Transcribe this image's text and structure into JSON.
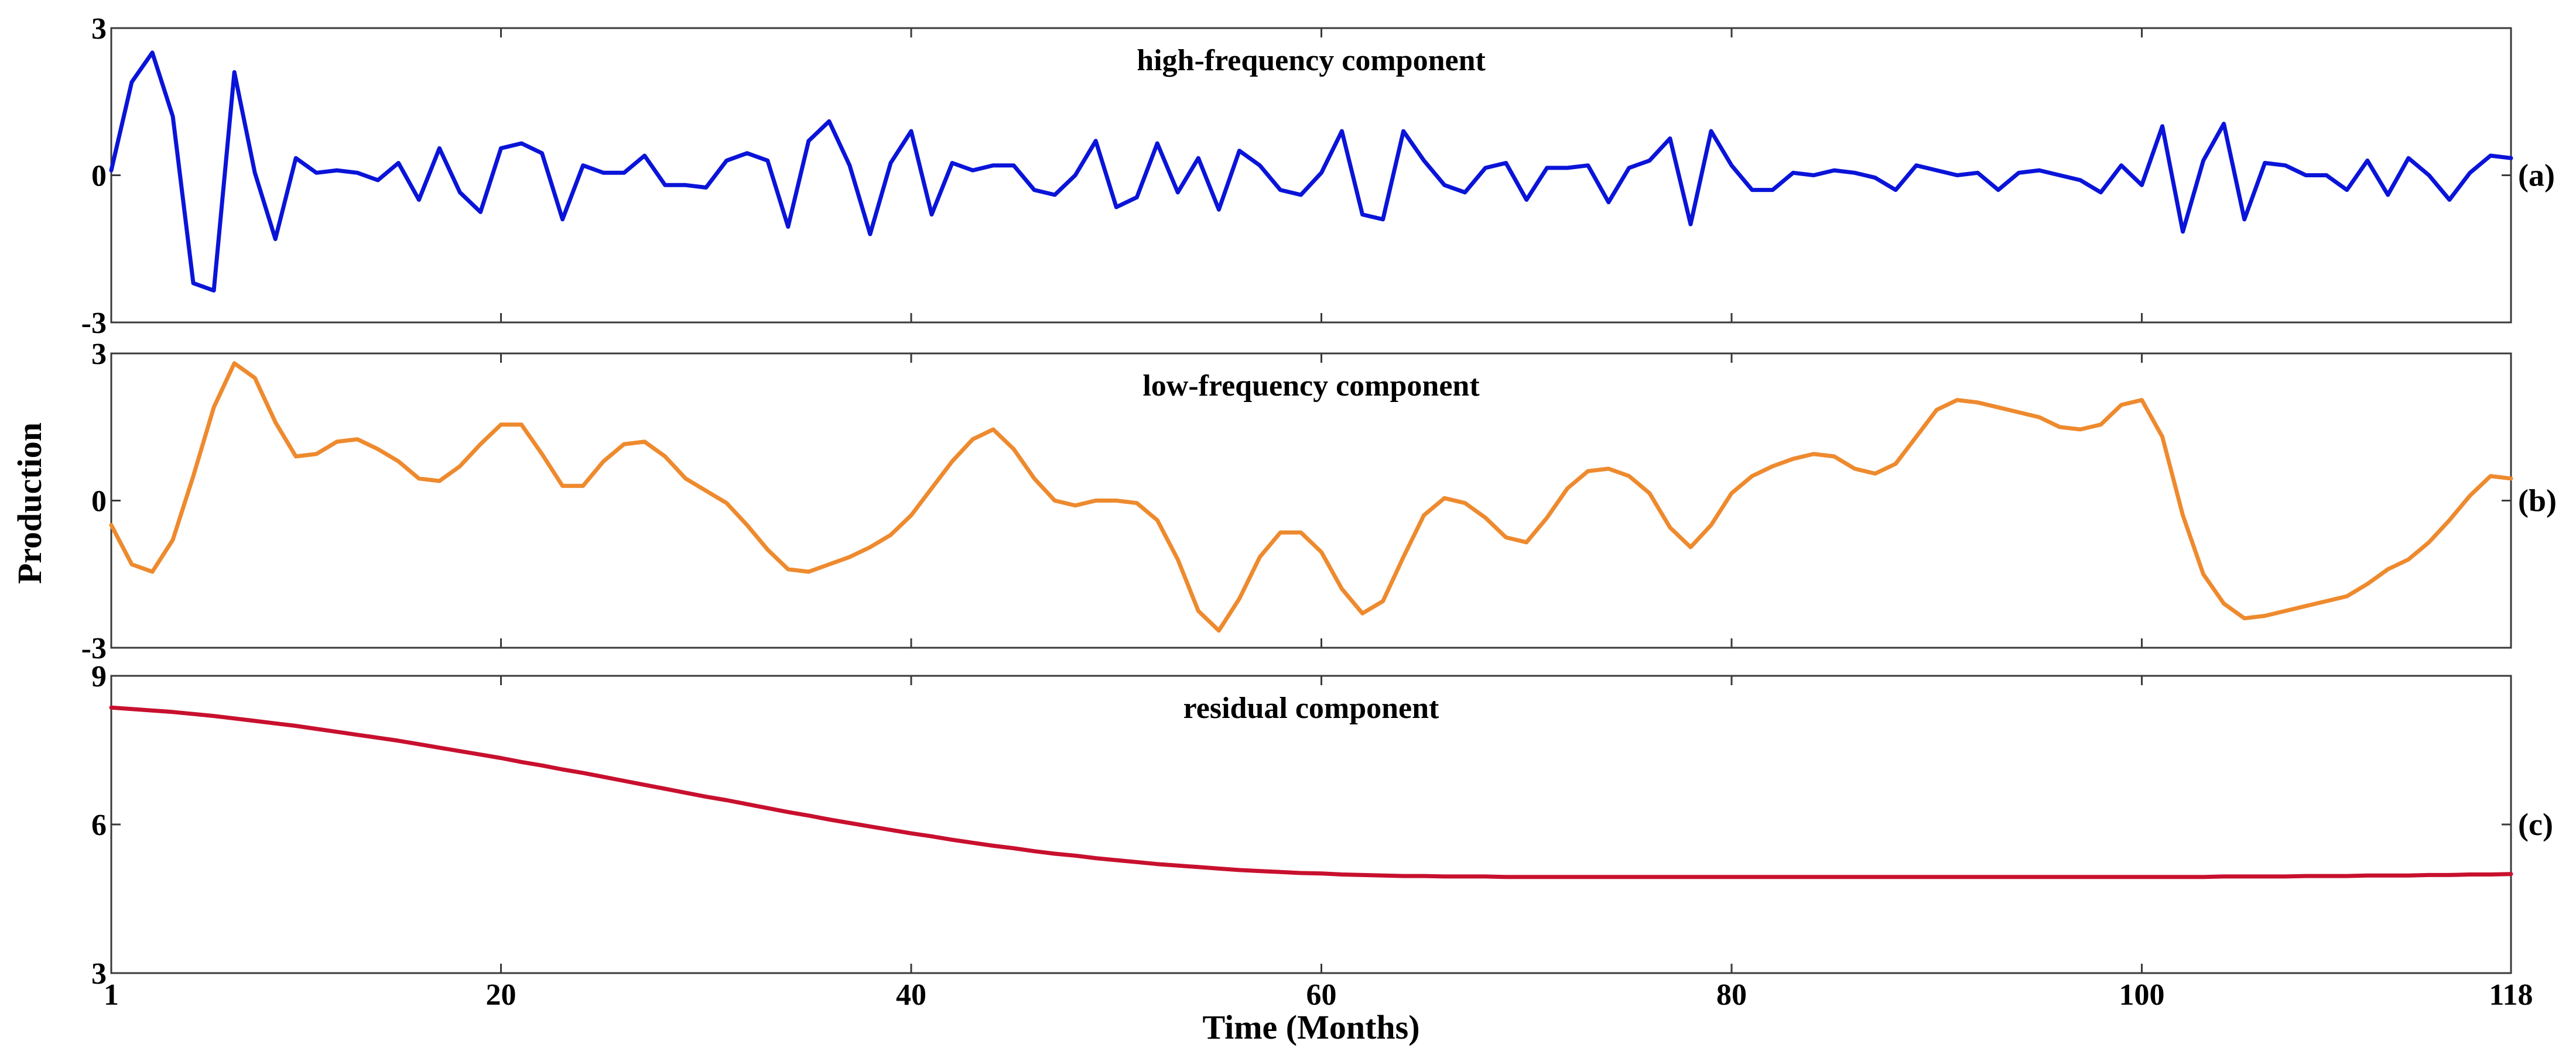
{
  "chart_data": [
    {
      "type": "line",
      "panel_label": "(a)",
      "title": "high-frequency component",
      "color": "#0a14d8",
      "ylim": [
        -3,
        3
      ],
      "yticks": [
        "-3",
        "0",
        "3"
      ],
      "x_start": 1,
      "values": [
        0.1,
        1.9,
        2.5,
        1.2,
        -2.2,
        -2.35,
        2.1,
        0.05,
        -1.3,
        0.35,
        0.05,
        0.1,
        0.05,
        -0.1,
        0.25,
        -0.5,
        0.55,
        -0.35,
        -0.75,
        0.55,
        0.65,
        0.45,
        -0.9,
        0.2,
        0.05,
        0.05,
        0.4,
        -0.2,
        -0.2,
        -0.25,
        0.3,
        0.45,
        0.3,
        -1.05,
        0.7,
        1.1,
        0.2,
        -1.2,
        0.25,
        0.9,
        -0.8,
        0.25,
        0.1,
        0.2,
        0.2,
        -0.3,
        -0.4,
        0.0,
        0.7,
        -0.65,
        -0.45,
        0.65,
        -0.35,
        0.35,
        -0.7,
        0.5,
        0.2,
        -0.3,
        -0.4,
        0.05,
        0.9,
        -0.8,
        -0.9,
        0.9,
        0.3,
        -0.2,
        -0.35,
        0.15,
        0.25,
        -0.5,
        0.15,
        0.15,
        0.2,
        -0.55,
        0.15,
        0.3,
        0.75,
        -1.0,
        0.9,
        0.2,
        -0.3,
        -0.3,
        0.05,
        0.0,
        0.1,
        0.05,
        -0.05,
        -0.3,
        0.2,
        0.1,
        0.0,
        0.05,
        -0.3,
        0.05,
        0.1,
        0.0,
        -0.1,
        -0.35,
        0.2,
        -0.2,
        1.0,
        -1.15,
        0.3,
        1.05,
        -0.9,
        0.25,
        0.2,
        0.0,
        0.0,
        -0.3,
        0.3,
        -0.4,
        0.35,
        0.0,
        -0.5,
        0.05,
        0.4,
        0.35
      ]
    },
    {
      "type": "line",
      "panel_label": "(b)",
      "title": "low-frequency component",
      "color": "#ee8a2e",
      "ylim": [
        -3,
        3
      ],
      "yticks": [
        "-3",
        "0",
        "3"
      ],
      "x_start": 1,
      "values": [
        -0.5,
        -1.3,
        -1.45,
        -0.8,
        0.5,
        1.9,
        2.8,
        2.5,
        1.6,
        0.9,
        0.95,
        1.2,
        1.25,
        1.05,
        0.8,
        0.45,
        0.4,
        0.7,
        1.15,
        1.55,
        1.55,
        0.95,
        0.3,
        0.3,
        0.8,
        1.15,
        1.2,
        0.9,
        0.45,
        0.2,
        -0.05,
        -0.5,
        -1.0,
        -1.4,
        -1.45,
        -1.3,
        -1.15,
        -0.95,
        -0.7,
        -0.3,
        0.25,
        0.8,
        1.25,
        1.45,
        1.05,
        0.45,
        0.0,
        -0.1,
        0.0,
        0.0,
        -0.05,
        -0.4,
        -1.2,
        -2.25,
        -2.65,
        -2.0,
        -1.15,
        -0.65,
        -0.65,
        -1.05,
        -1.8,
        -2.3,
        -2.05,
        -1.15,
        -0.3,
        0.05,
        -0.05,
        -0.35,
        -0.75,
        -0.85,
        -0.35,
        0.25,
        0.6,
        0.65,
        0.5,
        0.15,
        -0.55,
        -0.95,
        -0.5,
        0.15,
        0.5,
        0.7,
        0.85,
        0.95,
        0.9,
        0.65,
        0.55,
        0.75,
        1.3,
        1.85,
        2.05,
        2.0,
        1.9,
        1.8,
        1.7,
        1.5,
        1.45,
        1.55,
        1.95,
        2.05,
        1.3,
        -0.3,
        -1.5,
        -2.1,
        -2.4,
        -2.35,
        -2.25,
        -2.15,
        -2.05,
        -1.95,
        -1.7,
        -1.4,
        -1.2,
        -0.85,
        -0.4,
        0.1,
        0.5,
        0.45
      ]
    },
    {
      "type": "line",
      "panel_label": "(c)",
      "title": "residual component",
      "color": "#c8102e",
      "ylim": [
        3,
        9
      ],
      "yticks": [
        "3",
        "6",
        "9"
      ],
      "x_start": 1,
      "values": [
        8.36,
        8.33,
        8.3,
        8.27,
        8.23,
        8.19,
        8.14,
        8.09,
        8.04,
        7.99,
        7.93,
        7.87,
        7.81,
        7.75,
        7.69,
        7.62,
        7.55,
        7.48,
        7.41,
        7.34,
        7.26,
        7.19,
        7.11,
        7.04,
        6.96,
        6.88,
        6.8,
        6.72,
        6.64,
        6.56,
        6.49,
        6.41,
        6.33,
        6.25,
        6.18,
        6.1,
        6.03,
        5.96,
        5.89,
        5.82,
        5.76,
        5.69,
        5.63,
        5.57,
        5.52,
        5.46,
        5.41,
        5.37,
        5.32,
        5.28,
        5.24,
        5.2,
        5.17,
        5.14,
        5.11,
        5.08,
        5.06,
        5.04,
        5.02,
        5.01,
        4.99,
        4.98,
        4.97,
        4.96,
        4.96,
        4.95,
        4.95,
        4.95,
        4.94,
        4.94,
        4.94,
        4.94,
        4.94,
        4.94,
        4.94,
        4.94,
        4.94,
        4.94,
        4.94,
        4.94,
        4.94,
        4.94,
        4.94,
        4.94,
        4.94,
        4.94,
        4.94,
        4.94,
        4.94,
        4.94,
        4.94,
        4.94,
        4.94,
        4.94,
        4.94,
        4.94,
        4.94,
        4.94,
        4.94,
        4.94,
        4.94,
        4.94,
        4.94,
        4.95,
        4.95,
        4.95,
        4.95,
        4.96,
        4.96,
        4.96,
        4.97,
        4.97,
        4.97,
        4.98,
        4.98,
        4.99,
        4.99,
        5.0
      ]
    }
  ],
  "x_axis": {
    "label": "Time (Months)",
    "range": [
      1,
      118
    ],
    "ticks": [
      1,
      20,
      40,
      60,
      80,
      100,
      118
    ]
  },
  "y_axis_label": "Production"
}
